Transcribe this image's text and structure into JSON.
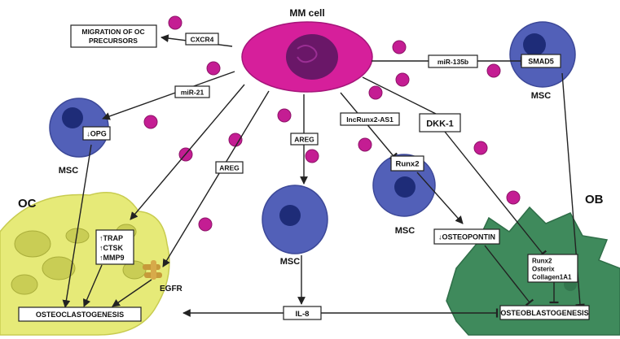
{
  "cells": {
    "mm_cell": "MM cell",
    "oc": "OC",
    "ob": "OB",
    "msc_labels": [
      "MSC",
      "MSC",
      "MSC",
      "MSC"
    ]
  },
  "boxes": {
    "migration": [
      "MIGRATION OF OC",
      "PRECURSORS"
    ],
    "cxcr4": "CXCR4",
    "mir21": "miR-21",
    "opg": "↓OPG",
    "areg_left": "AREG",
    "areg_center": "AREG",
    "trap": [
      "↑TRAP",
      "↑CTSK",
      "↑MMP9"
    ],
    "egfr": "EGFR",
    "osteoclastogenesis": "OSTEOCLASTOGENESIS",
    "il8": "IL-8",
    "lncrunx2": "lncRunx2-AS1",
    "dkk1": "DKK-1",
    "mir135b": "miR-135b",
    "smad5": "SMAD5",
    "runx2": "Runx2",
    "osteopontin": "↓OSTEOPONTIN",
    "ob_factors": [
      "Runx2",
      "Osterix",
      "Collagen1A1"
    ],
    "osteoblastogenesis": "OSTEOBLASTOGENESIS"
  },
  "colors": {
    "mm_cell": "#d61f9b",
    "mm_nucleus": "#6a1768",
    "msc": "#5260b8",
    "msc_nucleus": "#1e2c78",
    "oc": "#e6ea78",
    "ob": "#3f8a5c",
    "dot": "#c41d93",
    "egfr": "#c79a3a",
    "oc_label": "#d8dc56",
    "ob_label": "#3d8a5c",
    "msc_label": "#3e4fa3",
    "mm_label": "#b21d8c"
  }
}
